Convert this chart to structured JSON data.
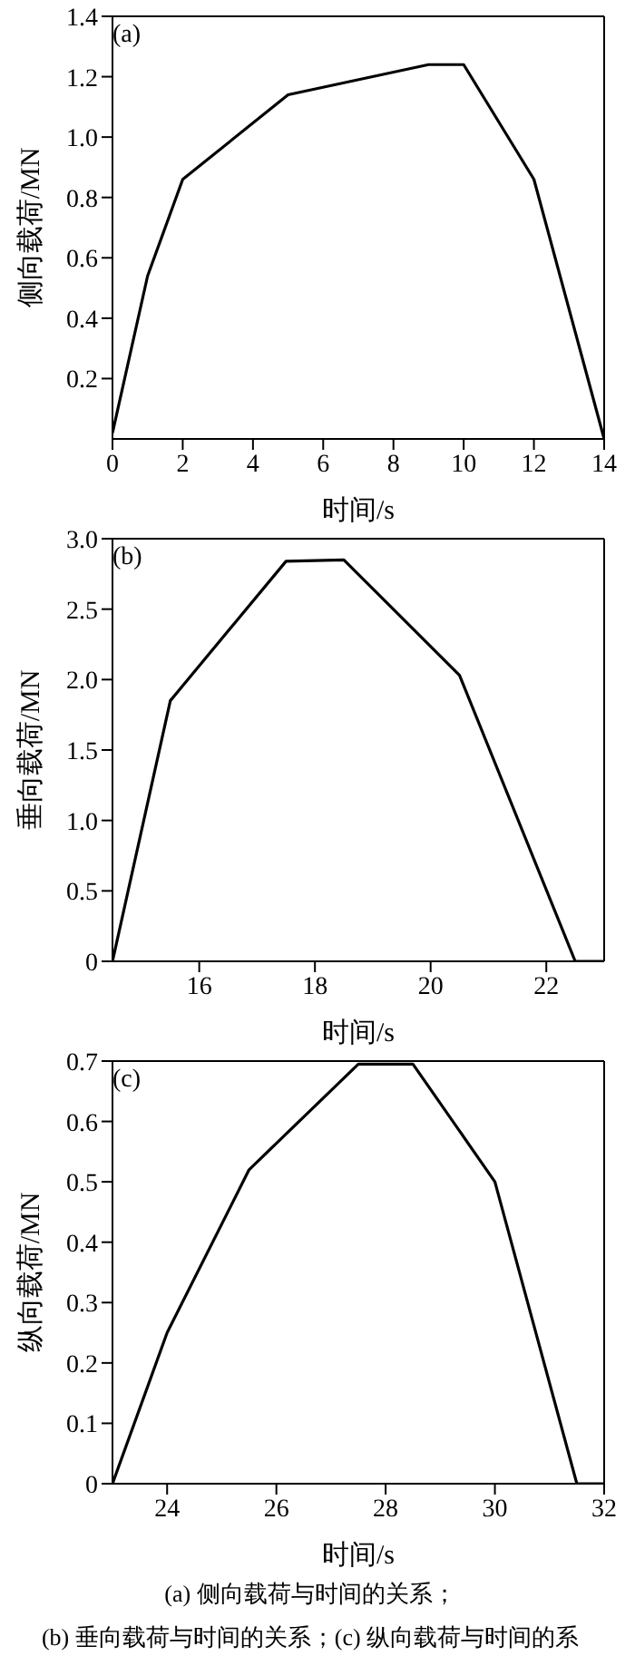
{
  "chart_data": [
    {
      "type": "line",
      "title": "(a)",
      "xlabel": "时间/s",
      "ylabel": "侧向载荷/MN",
      "x": [
        0,
        1,
        2,
        5,
        9,
        10,
        12,
        14
      ],
      "series": [
        {
          "color": "#000000",
          "values": [
            0.02,
            0.54,
            0.86,
            1.14,
            1.24,
            1.24,
            0.86,
            0
          ]
        }
      ],
      "xlim": [
        0,
        14
      ],
      "xticks": [
        0,
        2,
        4,
        6,
        8,
        10,
        12,
        14
      ],
      "ylim": [
        0,
        1.4
      ],
      "yticks": [
        0.2,
        0.4,
        0.6,
        0.8,
        {
          "value": 1,
          "label": "1.0"
        },
        1.2,
        1.4
      ]
    },
    {
      "type": "line",
      "title": "(b)",
      "xlabel": "时间/s",
      "ylabel": "垂向载荷/MN",
      "x": [
        14.5,
        15.5,
        17.5,
        18.5,
        20.5,
        22.5,
        23
      ],
      "series": [
        {
          "color": "#000000",
          "values": [
            0,
            1.85,
            2.84,
            2.85,
            2.03,
            0,
            0
          ]
        }
      ],
      "xlim": [
        14.5,
        23
      ],
      "xticks": [
        16,
        18,
        20,
        22
      ],
      "ylim": [
        0,
        3
      ],
      "yticks": [
        0,
        0.5,
        {
          "value": 1,
          "label": "1.0"
        },
        1.5,
        {
          "value": 2,
          "label": "2.0"
        },
        2.5,
        {
          "value": 3,
          "label": "3.0"
        }
      ]
    },
    {
      "type": "line",
      "title": "(c)",
      "xlabel": "时间/s",
      "ylabel": "纵向载荷/MN",
      "x": [
        23,
        24,
        25.5,
        27.5,
        28.5,
        30,
        31.5,
        32
      ],
      "series": [
        {
          "color": "#000000",
          "values": [
            0,
            0.25,
            0.52,
            0.695,
            0.695,
            0.5,
            0,
            0
          ]
        }
      ],
      "xlim": [
        23,
        32
      ],
      "xticks": [
        24,
        26,
        28,
        30,
        32
      ],
      "ylim": [
        0,
        0.7
      ],
      "yticks": [
        0,
        0.1,
        0.2,
        0.3,
        0.4,
        0.5,
        0.6,
        0.7
      ],
      "annotations": [
        "(a) 侧向载荷与时间的关系；",
        "(b) 垂向载荷与时间的关系；(c) 纵向载荷与时间的系"
      ]
    }
  ]
}
